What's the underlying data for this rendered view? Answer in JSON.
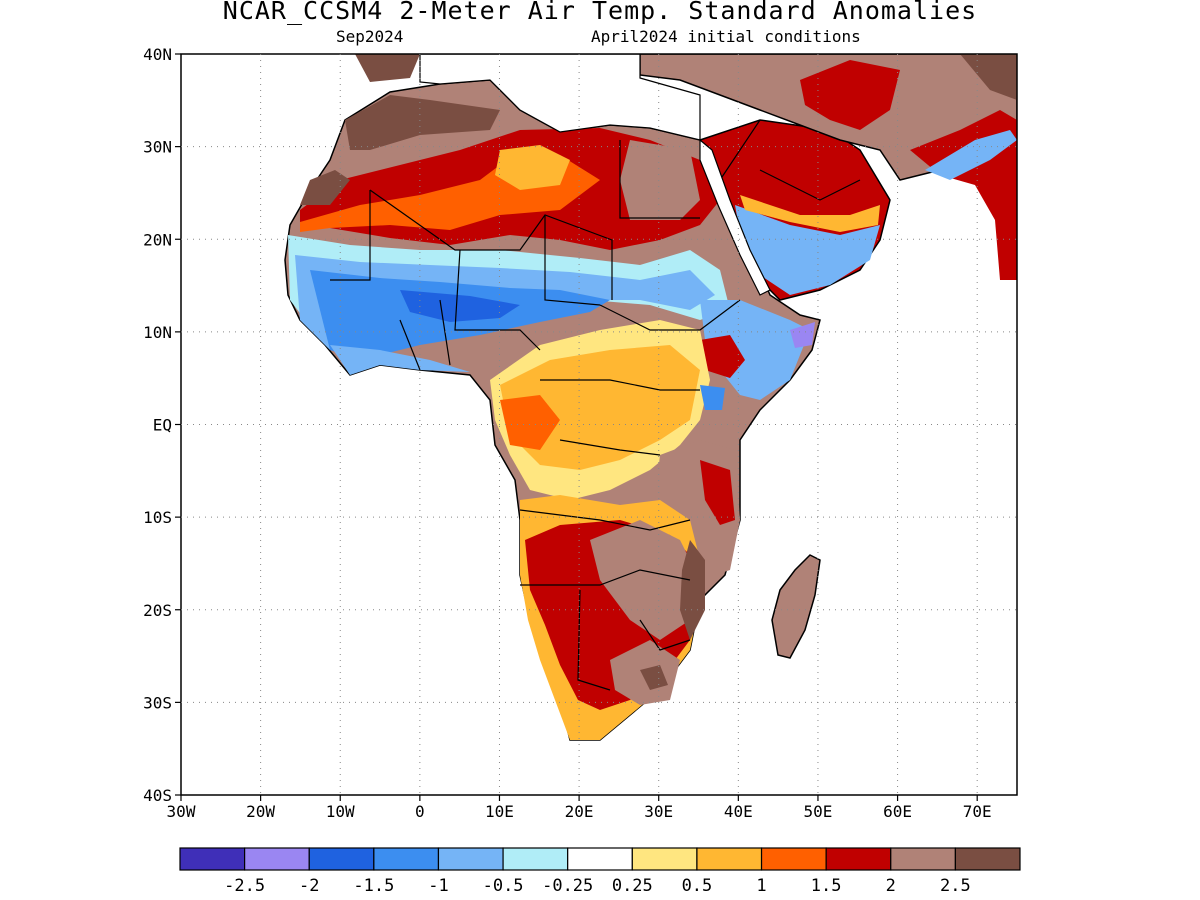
{
  "header": {
    "title": "NCAR_CCSM4 2-Meter Air Temp. Standard Anomalies",
    "valid_month": "Sep2024",
    "init": "April2024 initial conditions"
  },
  "axes": {
    "lat_labels": [
      "40N",
      "30N",
      "20N",
      "10N",
      "EQ",
      "10S",
      "20S",
      "30S",
      "40S"
    ],
    "lat_values": [
      40,
      30,
      20,
      10,
      0,
      -10,
      -20,
      -30,
      -40
    ],
    "lon_labels": [
      "30W",
      "20W",
      "10W",
      "0",
      "10E",
      "20E",
      "30E",
      "40E",
      "50E",
      "60E",
      "70E"
    ],
    "lon_values": [
      -30,
      -20,
      -10,
      0,
      10,
      20,
      30,
      40,
      50,
      60,
      70
    ],
    "lon_range": [
      -30,
      75
    ],
    "lat_range": [
      -40,
      40
    ],
    "grid": "dotted"
  },
  "legend": {
    "colors": [
      "#3f2fb8",
      "#9a86f2",
      "#1f62e0",
      "#3c8ef0",
      "#75b4f6",
      "#b0edf7",
      "#ffffff",
      "#ffe680",
      "#ffb732",
      "#ff6000",
      "#c00000",
      "#b08277",
      "#7a4e42"
    ],
    "labels": [
      "-2.5",
      "-2",
      "-1.5",
      "-1",
      "-0.5",
      "-0.25",
      "0.25",
      "0.5",
      "1",
      "1.5",
      "2",
      "2.5"
    ]
  }
}
